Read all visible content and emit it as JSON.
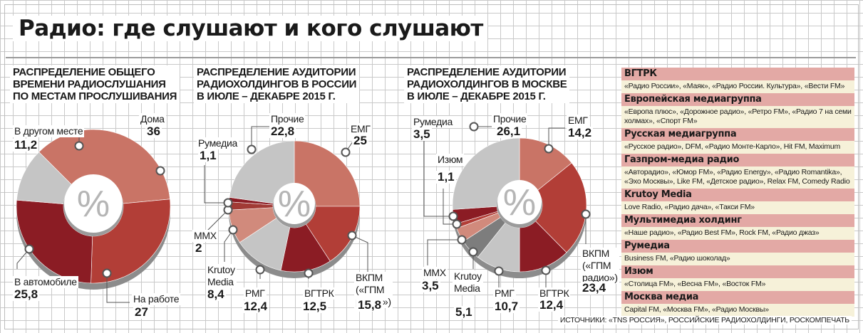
{
  "page": {
    "title": "Радио: где слушают и кого слушают",
    "sources": "ИСТОЧНИКИ: «TNS РОССИЯ», РОССИЙСКИЕ РАДИОХОЛДИНГИ, РОСКОМПЕЧАТЬ",
    "colors": {
      "grid": "#c9c9c9",
      "legend_header": "#e3a9a5",
      "legend_body": "#f6f1d9"
    }
  },
  "chart_data": [
    {
      "type": "pie",
      "title_lines": [
        "РАСПРЕДЕЛЕНИЕ ОБЩЕГО",
        "ВРЕМЕНИ РАДИОСЛУШАНИЯ",
        "ПО МЕСТАМ ПРОСЛУШИВАНИЯ"
      ],
      "center_label": "%",
      "slices": [
        {
          "label_lines": [
            "Дома"
          ],
          "value": 36,
          "display": "36",
          "color": "#c97466"
        },
        {
          "label_lines": [
            "На работе"
          ],
          "value": 27,
          "display": "27",
          "color": "#b23e37"
        },
        {
          "label_lines": [
            "В автомобиле"
          ],
          "value": 25.8,
          "display": "25,8",
          "color": "#8b1c24"
        },
        {
          "label_lines": [
            "В другом месте"
          ],
          "value": 11.2,
          "display": "11,2",
          "color": "#c5c5c5"
        }
      ]
    },
    {
      "type": "pie",
      "title_lines": [
        "РАСПРЕДЕЛЕНИЕ АУДИТОРИИ",
        "РАДИОХОЛДИНГОВ В РОССИИ",
        "В ИЮЛЕ – ДЕКАБРЕ 2015 Г."
      ],
      "center_label": "%",
      "slices": [
        {
          "label_lines": [
            "ЕМГ"
          ],
          "value": 25,
          "display": "25",
          "color": "#c97466"
        },
        {
          "label_lines": [
            "ВКПМ",
            "(«ГПМ",
            "радио»)"
          ],
          "value": 15.8,
          "display": "15,8",
          "color": "#b23e37"
        },
        {
          "label_lines": [
            "ВГТРК"
          ],
          "value": 12.5,
          "display": "12,5",
          "color": "#8b1c24"
        },
        {
          "label_lines": [
            "РМГ"
          ],
          "value": 12.4,
          "display": "12,4",
          "color": "#c5c5c5"
        },
        {
          "label_lines": [
            "Krutoy",
            "Media"
          ],
          "value": 8.4,
          "display": "8,4",
          "color": "#d18a7c"
        },
        {
          "label_lines": [
            "ММХ"
          ],
          "value": 2,
          "display": "2",
          "color": "#a13a35"
        },
        {
          "label_lines": [
            "Румедиа"
          ],
          "value": 1.1,
          "display": "1,1",
          "color": "#8b1c24"
        },
        {
          "label_lines": [
            "Прочие"
          ],
          "value": 22.8,
          "display": "22,8",
          "color": "#c5c5c5"
        }
      ]
    },
    {
      "type": "pie",
      "title_lines": [
        "РАСПРЕДЕЛЕНИЕ АУДИТОРИИ",
        "РАДИОХОЛДИНГОВ В МОСКВЕ",
        "В ИЮЛЕ – ДЕКАБРЕ 2015 Г."
      ],
      "center_label": "%",
      "slices": [
        {
          "label_lines": [
            "ЕМГ"
          ],
          "value": 14.2,
          "display": "14,2",
          "color": "#c97466"
        },
        {
          "label_lines": [
            "ВКПМ",
            "(«ГПМ",
            "радио»)"
          ],
          "value": 23.4,
          "display": "23,4",
          "color": "#b23e37"
        },
        {
          "label_lines": [
            "ВГТРК"
          ],
          "value": 12.4,
          "display": "12,4",
          "color": "#8b1c24"
        },
        {
          "label_lines": [
            "РМГ"
          ],
          "value": 10.7,
          "display": "10,7",
          "color": "#c5c5c5"
        },
        {
          "label_lines": [
            "Krutoy",
            "Media"
          ],
          "value": 5.1,
          "display": "5,1",
          "color": "#7d7d7d"
        },
        {
          "label_lines": [
            "ММХ"
          ],
          "value": 3.5,
          "display": "3,5",
          "color": "#d18a7c"
        },
        {
          "label_lines": [
            "Изюм"
          ],
          "value": 1.1,
          "display": "1,1",
          "color": "#b23e37"
        },
        {
          "label_lines": [
            "Румедиа"
          ],
          "value": 3.5,
          "display": "3,5",
          "color": "#8b1c24"
        },
        {
          "label_lines": [
            "Прочие"
          ],
          "value": 26.1,
          "display": "26,1",
          "color": "#c5c5c5"
        }
      ]
    }
  ],
  "legend": [
    {
      "name": "ВГТРК",
      "stations": "«Радио России», «Маяк», «Радио России. Культура», «Вести FM»"
    },
    {
      "name": "Европейская медиагруппа",
      "stations": "«Европа плюс», «Дорожное радио», «Ретро FM», «Радио 7 на семи холмах», «Спорт FM»"
    },
    {
      "name": "Русская медиагруппа",
      "stations": "«Русское радио», DFM, «Радио Монте-Карло», Hit FM, Maximum"
    },
    {
      "name": "Газпром-медиа радио",
      "stations": "«Авторадио», «Юмор FM», «Радио Energy», «Радио Romantika», «Эхо Москвы», Like FM, «Детское радио», Relax FM, Comedy Radio"
    },
    {
      "name": "Krutoy Media",
      "stations": "Love Radio, «Радио дача», «Такси FM»"
    },
    {
      "name": "Мультимедиа холдинг",
      "stations": "«Наше радио», «Радио Best FM», Rock FM, «Радио джаз»"
    },
    {
      "name": "Румедиа",
      "stations": "Business FM, «Радио шоколад»"
    },
    {
      "name": "Изюм",
      "stations": "«Столица FM», «Весна FM», «Восток FM»"
    },
    {
      "name": "Москва медиа",
      "stations": "Capital FM, «Москва FM», «Радио Москвы»"
    }
  ]
}
